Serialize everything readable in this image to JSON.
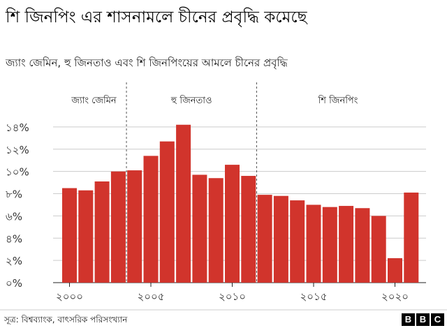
{
  "header": {
    "title": "শি জিনপিং এর শাসনামলে চীনের প্রবৃদ্ধি কমেছে",
    "subtitle": "জ্যাং জেমিন, হু জিনতাও এবং শি জিনপিংয়ের আমলে চীনের প্রবৃদ্ধি"
  },
  "footer": {
    "source": "সূত্র: বিশ্বব্যাংক, বাৎসরিক পরিসংখ্যান",
    "logo_letters": [
      "B",
      "B",
      "C"
    ]
  },
  "chart_data": {
    "type": "bar",
    "title": "জ্যাং জেমিন, হু জিনতাও এবং শি জিনপিংয়ের আমলে চীনের প্রবৃদ্ধি",
    "xlabel": "",
    "ylabel": "",
    "bar_color": "#d1342c",
    "x": [
      2000,
      2001,
      2002,
      2003,
      2004,
      2005,
      2006,
      2007,
      2008,
      2009,
      2010,
      2011,
      2012,
      2013,
      2014,
      2015,
      2016,
      2017,
      2018,
      2019,
      2020,
      2021
    ],
    "values": [
      8.5,
      8.3,
      9.1,
      10.0,
      10.1,
      11.4,
      12.7,
      14.2,
      9.7,
      9.4,
      10.6,
      9.6,
      7.9,
      7.8,
      7.4,
      7.0,
      6.8,
      6.9,
      6.7,
      6.0,
      2.2,
      8.1
    ],
    "ylim": [
      0,
      15
    ],
    "y_ticks": [
      0,
      2,
      4,
      6,
      8,
      10,
      12,
      14
    ],
    "y_tick_labels": [
      "০%",
      "২%",
      "৪%",
      "৬%",
      "৮%",
      "১০%",
      "১২%",
      "১৪%"
    ],
    "x_ticks": [
      2000,
      2005,
      2010,
      2015,
      2020
    ],
    "x_tick_labels": [
      "২০০০",
      "২০০৫",
      "২০১০",
      "২০১৫",
      "২০২০"
    ],
    "grid": true,
    "eras": [
      {
        "label": "জ্যাং জেমিন",
        "start": 2000,
        "end": 2003
      },
      {
        "label": "হু জিনতাও",
        "start": 2004,
        "end": 2011
      },
      {
        "label": "শি জিনপিং",
        "start": 2012,
        "end": 2021
      }
    ]
  }
}
